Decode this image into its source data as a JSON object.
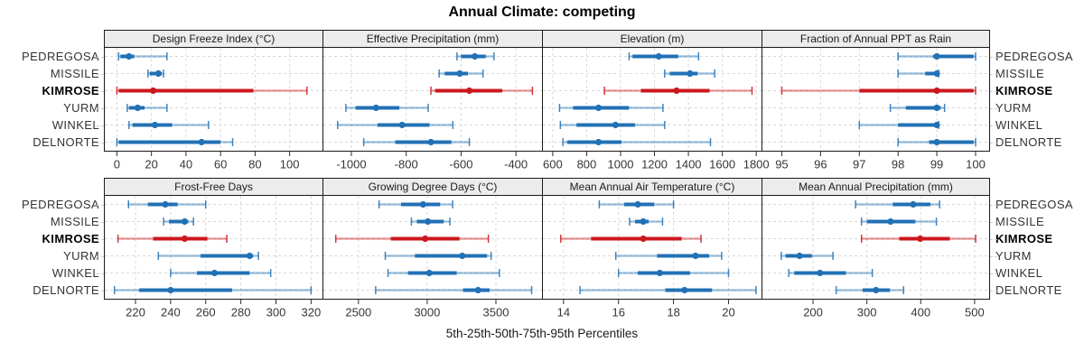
{
  "title": "Annual Climate: competing",
  "footer": "5th-25th-50th-75th-95th Percentiles",
  "colors": {
    "normal": "#2171B5",
    "highlight": "#CB181D",
    "grid": "#d8d8d8",
    "strip_bg": "#ececec",
    "border": "#1a1a1a",
    "tick": "#2b2b2b",
    "tick_label": "#363636"
  },
  "chart_data": {
    "type": "scatter",
    "variant": "multi-panel percentile interval dotplot (5th-25th-50th-75th-95th)",
    "title": "Annual Climate: competing",
    "footer_label": "5th-25th-50th-75th-95th Percentiles",
    "percentile_labels": [
      "5th",
      "25th",
      "50th",
      "75th",
      "95th"
    ],
    "stations": [
      "PEDREGOSA",
      "MISSILE",
      "KIMROSE",
      "YURM",
      "WINKEL",
      "DELNORTE"
    ],
    "highlighted_station": "KIMROSE",
    "grid": "dashed",
    "legend_position": "none",
    "panels": [
      {
        "title": "Design Freeze Index (°C)",
        "row": 0,
        "col": 0,
        "xlim": [
          -7,
          119
        ],
        "ticks": [
          0,
          20,
          40,
          60,
          80,
          100
        ],
        "series": [
          {
            "station": "PEDREGOSA",
            "p": [
              1,
              2,
              7,
              10,
              29
            ]
          },
          {
            "station": "MISSILE",
            "p": [
              18,
              19,
              24,
              26,
              27
            ]
          },
          {
            "station": "KIMROSE",
            "p": [
              0,
              1,
              21,
              79,
              110
            ]
          },
          {
            "station": "YURM",
            "p": [
              6,
              7,
              12,
              16,
              29
            ]
          },
          {
            "station": "WINKEL",
            "p": [
              7,
              9,
              22,
              32,
              53
            ]
          },
          {
            "station": "DELNORTE",
            "p": [
              0,
              1,
              49,
              60,
              67
            ]
          }
        ]
      },
      {
        "title": "Effective Precipitation (mm)",
        "row": 0,
        "col": 1,
        "xlim": [
          -1102,
          -305
        ],
        "ticks": [
          -1000,
          -800,
          -600,
          -400
        ],
        "series": [
          {
            "station": "PEDREGOSA",
            "p": [
              -615,
              -600,
              -550,
              -510,
              -480
            ]
          },
          {
            "station": "MISSILE",
            "p": [
              -680,
              -660,
              -605,
              -575,
              -520
            ]
          },
          {
            "station": "KIMROSE",
            "p": [
              -710,
              -695,
              -570,
              -450,
              -340
            ]
          },
          {
            "station": "YURM",
            "p": [
              -1020,
              -985,
              -910,
              -825,
              -720
            ]
          },
          {
            "station": "WINKEL",
            "p": [
              -1050,
              -905,
              -815,
              -715,
              -630
            ]
          },
          {
            "station": "DELNORTE",
            "p": [
              -955,
              -840,
              -710,
              -635,
              -570
            ]
          }
        ]
      },
      {
        "title": "Elevation (m)",
        "row": 0,
        "col": 2,
        "xlim": [
          542,
          1831
        ],
        "ticks": [
          600,
          800,
          1000,
          1200,
          1400,
          1600,
          1800
        ],
        "series": [
          {
            "station": "PEDREGOSA",
            "p": [
              1050,
              1070,
              1225,
              1340,
              1460
            ]
          },
          {
            "station": "MISSILE",
            "p": [
              1260,
              1290,
              1410,
              1455,
              1555
            ]
          },
          {
            "station": "KIMROSE",
            "p": [
              905,
              1120,
              1330,
              1525,
              1775
            ]
          },
          {
            "station": "YURM",
            "p": [
              640,
              720,
              870,
              1050,
              1250
            ]
          },
          {
            "station": "WINKEL",
            "p": [
              645,
              740,
              970,
              1085,
              1260
            ]
          },
          {
            "station": "DELNORTE",
            "p": [
              660,
              685,
              870,
              1005,
              1530
            ]
          }
        ]
      },
      {
        "title": "Fraction of Annual PPT as Rain",
        "row": 0,
        "col": 3,
        "xlim": [
          94.5,
          100.35
        ],
        "ticks": [
          95,
          96,
          97,
          98,
          99,
          100
        ],
        "series": [
          {
            "station": "PEDREGOSA",
            "p": [
              98,
              98.9,
              99,
              99.95,
              100
            ]
          },
          {
            "station": "MISSILE",
            "p": [
              98,
              98.7,
              99,
              99,
              99.05
            ]
          },
          {
            "station": "KIMROSE",
            "p": [
              95,
              97,
              99,
              99.95,
              100
            ]
          },
          {
            "station": "YURM",
            "p": [
              97.8,
              98.2,
              99,
              99.1,
              99.2
            ]
          },
          {
            "station": "WINKEL",
            "p": [
              97,
              98,
              99,
              99,
              99.05
            ]
          },
          {
            "station": "DELNORTE",
            "p": [
              98,
              98.8,
              99,
              99.95,
              100
            ]
          }
        ]
      },
      {
        "title": "Frost-Free Days",
        "row": 1,
        "col": 0,
        "xlim": [
          202.5,
          326.5
        ],
        "ticks": [
          220,
          240,
          260,
          280,
          300,
          320
        ],
        "series": [
          {
            "station": "PEDREGOSA",
            "p": [
              216,
              227,
              237,
              244,
              260
            ]
          },
          {
            "station": "MISSILE",
            "p": [
              236,
              239,
              248,
              250,
              253
            ]
          },
          {
            "station": "KIMROSE",
            "p": [
              210,
              230,
              248,
              261,
              272
            ]
          },
          {
            "station": "YURM",
            "p": [
              233,
              257,
              285,
              287,
              290
            ]
          },
          {
            "station": "WINKEL",
            "p": [
              240,
              255,
              265,
              285,
              297
            ]
          },
          {
            "station": "DELNORTE",
            "p": [
              208,
              222,
              240,
              275,
              320
            ]
          }
        ]
      },
      {
        "title": "Growing Degree Days (°C)",
        "row": 1,
        "col": 1,
        "xlim": [
          2245,
          3835
        ],
        "ticks": [
          2500,
          3000,
          3500
        ],
        "series": [
          {
            "station": "PEDREGOSA",
            "p": [
              2650,
              2810,
              2970,
              3095,
              3185
            ]
          },
          {
            "station": "MISSILE",
            "p": [
              2885,
              2925,
              3005,
              3120,
              3165
            ]
          },
          {
            "station": "KIMROSE",
            "p": [
              2335,
              2735,
              2985,
              3235,
              3445
            ]
          },
          {
            "station": "YURM",
            "p": [
              2695,
              2910,
              3255,
              3435,
              3465
            ]
          },
          {
            "station": "WINKEL",
            "p": [
              2715,
              2860,
              3015,
              3215,
              3525
            ]
          },
          {
            "station": "DELNORTE",
            "p": [
              2625,
              3260,
              3370,
              3455,
              3760
            ]
          }
        ]
      },
      {
        "title": "Mean Annual Air Temperature (°C)",
        "row": 1,
        "col": 2,
        "xlim": [
          13.25,
          21.2
        ],
        "ticks": [
          14,
          16,
          18,
          20
        ],
        "series": [
          {
            "station": "PEDREGOSA",
            "p": [
              15.3,
              16.2,
              16.7,
              17.3,
              18
            ]
          },
          {
            "station": "MISSILE",
            "p": [
              16.4,
              16.6,
              16.9,
              17.1,
              17.6
            ]
          },
          {
            "station": "KIMROSE",
            "p": [
              13.9,
              15,
              16.9,
              18.3,
              19
            ]
          },
          {
            "station": "YURM",
            "p": [
              15.9,
              17.4,
              18.8,
              19.3,
              19.75
            ]
          },
          {
            "station": "WINKEL",
            "p": [
              16,
              16.7,
              17.5,
              18.6,
              20
            ]
          },
          {
            "station": "DELNORTE",
            "p": [
              14.6,
              17.7,
              18.4,
              19.4,
              21
            ]
          }
        ]
      },
      {
        "title": "Mean Annual Precipitation (mm)",
        "row": 1,
        "col": 3,
        "xlim": [
          106,
          527
        ],
        "ticks": [
          200,
          300,
          400,
          500
        ],
        "series": [
          {
            "station": "PEDREGOSA",
            "p": [
              279,
              348,
              386,
              418,
              435
            ]
          },
          {
            "station": "MISSILE",
            "p": [
              290,
              300,
              344,
              390,
              429
            ]
          },
          {
            "station": "KIMROSE",
            "p": [
              290,
              360,
              399,
              454,
              502
            ]
          },
          {
            "station": "YURM",
            "p": [
              141,
              149,
              175,
              198,
              237
            ]
          },
          {
            "station": "WINKEL",
            "p": [
              155,
              165,
              213,
              261,
              310
            ]
          },
          {
            "station": "DELNORTE",
            "p": [
              243,
              292,
              317,
              343,
              368
            ]
          }
        ]
      }
    ]
  }
}
